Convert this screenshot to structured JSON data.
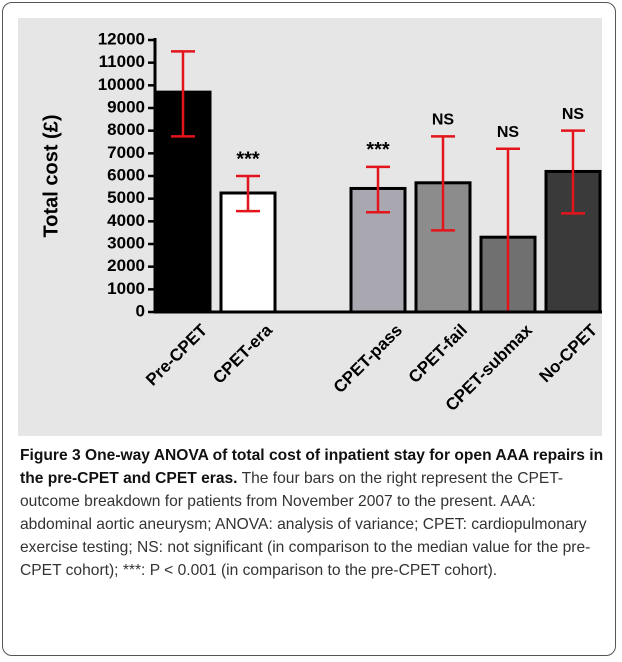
{
  "chart_data": {
    "type": "bar",
    "ylabel": "Total cost (£)",
    "categories": [
      "Pre-CPET",
      "CPET-era",
      null,
      "CPET-pass",
      "CPET-fail",
      "CPET-submax",
      "No-CPET"
    ],
    "values": [
      9700,
      5250,
      null,
      5450,
      5700,
      3300,
      6200
    ],
    "lower": [
      7750,
      4450,
      null,
      4400,
      3600,
      0,
      4350
    ],
    "upper": [
      11500,
      6000,
      null,
      6400,
      7750,
      7200,
      8000
    ],
    "annotations": [
      null,
      "***",
      null,
      "***",
      "NS",
      "NS",
      "NS"
    ],
    "colors": [
      "#000000",
      "#ffffff",
      null,
      "#a9a8b0",
      "#8c8c8c",
      "#707070",
      "#3a3a3a"
    ],
    "error_color": "#e3141b",
    "ylim": [
      0,
      12000
    ],
    "yticks": [
      0,
      1000,
      2000,
      3000,
      4000,
      5000,
      6000,
      7000,
      8000,
      9000,
      10000,
      11000,
      12000
    ]
  },
  "caption": {
    "title": "Figure 3 One-way ANOVA of total cost of inpatient stay for open AAA repairs in the pre-CPET and CPET eras.",
    "text": "The four bars on the right represent the CPET-outcome breakdown for patients from November 2007 to the present. AAA: abdominal aortic aneurysm; ANOVA: analysis of variance; CPET: cardiopulmonary exercise testing; NS: not significant (in comparison to the median value for the pre-CPET cohort); ***: P < 0.001 (in comparison to the pre-CPET cohort)."
  }
}
